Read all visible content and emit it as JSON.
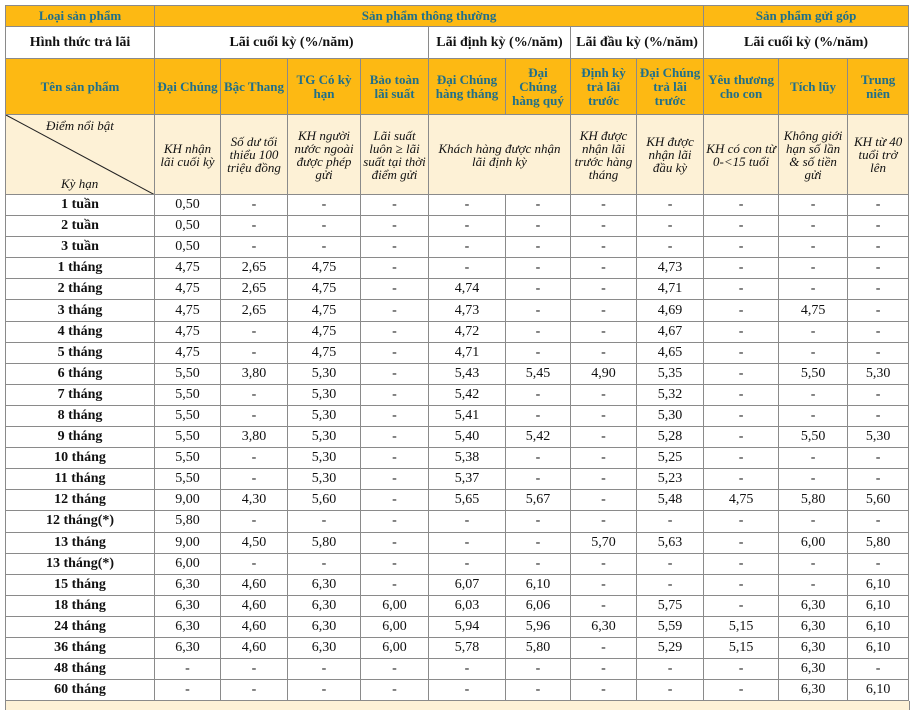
{
  "header": {
    "product_type_label": "Loại sản phẩm",
    "group_regular": "Sản phẩm thông thường",
    "group_installment": "Sản phẩm gửi góp",
    "payment_method_label": "Hình thức trả lãi",
    "payment_methods": [
      "Lãi cuối kỳ (%/năm)",
      "Lãi định kỳ (%/năm)",
      "Lãi đầu kỳ (%/năm)",
      "Lãi cuối kỳ (%/năm)"
    ],
    "product_name_label": "Tên sản phẩm",
    "products": [
      "Đại Chúng",
      "Bậc Thang",
      "TG Có kỳ hạn",
      "Bảo toàn lãi suất",
      "Đại Chúng hàng tháng",
      "Đại Chúng hàng quý",
      "Định kỳ trả lãi trước",
      "Đại Chúng trả lãi trước",
      "Yêu thương cho con",
      "Tích lũy",
      "Trung niên"
    ],
    "highlight_label": "Điểm nổi bật",
    "term_label": "Kỳ hạn",
    "highlights": [
      "KH nhận lãi cuối kỳ",
      "Số dư tối thiểu 100 triệu đồng",
      "KH người nước ngoài được phép gửi",
      "Lãi suất luôn ≥ lãi suất tại thời điểm gửi",
      "Khách hàng được nhận lãi định kỳ",
      "KH được nhận lãi trước hàng tháng",
      "KH được nhận lãi đầu kỳ",
      "KH có con từ 0-<15 tuổi",
      "Không giới hạn số lần & số tiền gửi",
      "KH từ 40 tuổi trở lên"
    ]
  },
  "colors": {
    "header_bg": "#fdb913",
    "header_text": "#1f6f8b",
    "highlight_bg": "#fdf1d6"
  },
  "rows": [
    {
      "term": "1 tuần",
      "values": [
        "0,50",
        "-",
        "-",
        "-",
        "-",
        "-",
        "-",
        "-",
        "-",
        "-",
        "-"
      ]
    },
    {
      "term": "2 tuần",
      "values": [
        "0,50",
        "-",
        "-",
        "-",
        "-",
        "-",
        "-",
        "-",
        "-",
        "-",
        "-"
      ]
    },
    {
      "term": "3 tuần",
      "values": [
        "0,50",
        "-",
        "-",
        "-",
        "-",
        "-",
        "-",
        "-",
        "-",
        "-",
        "-"
      ]
    },
    {
      "term": "1 tháng",
      "values": [
        "4,75",
        "2,65",
        "4,75",
        "-",
        "-",
        "-",
        "-",
        "4,73",
        "-",
        "-",
        "-"
      ]
    },
    {
      "term": "2 tháng",
      "values": [
        "4,75",
        "2,65",
        "4,75",
        "-",
        "4,74",
        "-",
        "-",
        "4,71",
        "-",
        "-",
        "-"
      ]
    },
    {
      "term": "3 tháng",
      "values": [
        "4,75",
        "2,65",
        "4,75",
        "-",
        "4,73",
        "-",
        "-",
        "4,69",
        "-",
        "4,75",
        "-"
      ]
    },
    {
      "term": "4 tháng",
      "values": [
        "4,75",
        "-",
        "4,75",
        "-",
        "4,72",
        "-",
        "-",
        "4,67",
        "-",
        "-",
        "-"
      ]
    },
    {
      "term": "5 tháng",
      "values": [
        "4,75",
        "-",
        "4,75",
        "-",
        "4,71",
        "-",
        "-",
        "4,65",
        "-",
        "-",
        "-"
      ]
    },
    {
      "term": "6 tháng",
      "values": [
        "5,50",
        "3,80",
        "5,30",
        "-",
        "5,43",
        "5,45",
        "4,90",
        "5,35",
        "-",
        "5,50",
        "5,30"
      ]
    },
    {
      "term": "7 tháng",
      "values": [
        "5,50",
        "-",
        "5,30",
        "-",
        "5,42",
        "-",
        "-",
        "5,32",
        "-",
        "-",
        "-"
      ]
    },
    {
      "term": "8 tháng",
      "values": [
        "5,50",
        "-",
        "5,30",
        "-",
        "5,41",
        "-",
        "-",
        "5,30",
        "-",
        "-",
        "-"
      ]
    },
    {
      "term": "9 tháng",
      "values": [
        "5,50",
        "3,80",
        "5,30",
        "-",
        "5,40",
        "5,42",
        "-",
        "5,28",
        "-",
        "5,50",
        "5,30"
      ]
    },
    {
      "term": "10 tháng",
      "values": [
        "5,50",
        "-",
        "5,30",
        "-",
        "5,38",
        "-",
        "-",
        "5,25",
        "-",
        "-",
        "-"
      ]
    },
    {
      "term": "11 tháng",
      "values": [
        "5,50",
        "-",
        "5,30",
        "-",
        "5,37",
        "-",
        "-",
        "5,23",
        "-",
        "-",
        "-"
      ]
    },
    {
      "term": "12 tháng",
      "values": [
        "9,00",
        "4,30",
        "5,60",
        "-",
        "5,65",
        "5,67",
        "-",
        "5,48",
        "4,75",
        "5,80",
        "5,60"
      ]
    },
    {
      "term": "12 tháng(*)",
      "values": [
        "5,80",
        "-",
        "-",
        "-",
        "-",
        "-",
        "-",
        "-",
        "-",
        "-",
        "-"
      ]
    },
    {
      "term": "13 tháng",
      "values": [
        "9,00",
        "4,50",
        "5,80",
        "-",
        "-",
        "-",
        "5,70",
        "5,63",
        "-",
        "6,00",
        "5,80"
      ]
    },
    {
      "term": "13 tháng(*)",
      "values": [
        "6,00",
        "-",
        "-",
        "-",
        "-",
        "-",
        "-",
        "-",
        "-",
        "-",
        "-"
      ]
    },
    {
      "term": "15 tháng",
      "values": [
        "6,30",
        "4,60",
        "6,30",
        "-",
        "6,07",
        "6,10",
        "-",
        "-",
        "-",
        "-",
        "6,10"
      ]
    },
    {
      "term": "18 tháng",
      "values": [
        "6,30",
        "4,60",
        "6,30",
        "6,00",
        "6,03",
        "6,06",
        "-",
        "5,75",
        "-",
        "6,30",
        "6,10"
      ]
    },
    {
      "term": "24 tháng",
      "values": [
        "6,30",
        "4,60",
        "6,30",
        "6,00",
        "5,94",
        "5,96",
        "6,30",
        "5,59",
        "5,15",
        "6,30",
        "6,10"
      ]
    },
    {
      "term": "36 tháng",
      "values": [
        "6,30",
        "4,60",
        "6,30",
        "6,00",
        "5,78",
        "5,80",
        "-",
        "5,29",
        "5,15",
        "6,30",
        "6,10"
      ]
    },
    {
      "term": "48 tháng",
      "values": [
        "-",
        "-",
        "-",
        "-",
        "-",
        "-",
        "-",
        "-",
        "-",
        "6,30",
        "-"
      ]
    },
    {
      "term": "60 tháng",
      "values": [
        "-",
        "-",
        "-",
        "-",
        "-",
        "-",
        "-",
        "-",
        "-",
        "6,30",
        "6,10"
      ]
    }
  ]
}
